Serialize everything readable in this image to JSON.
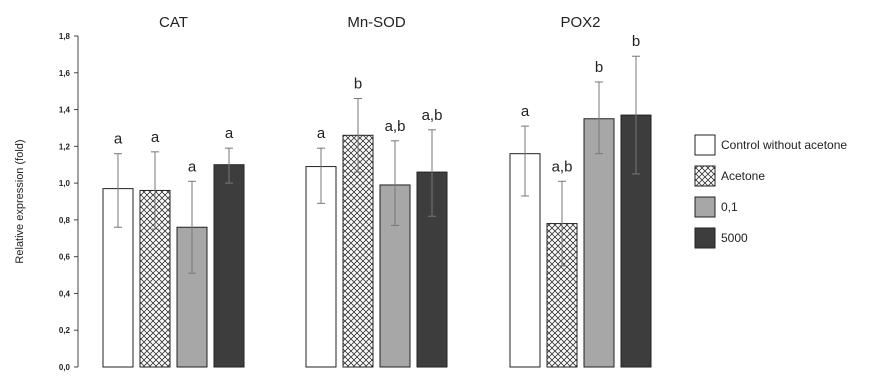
{
  "chart_data": {
    "type": "bar",
    "title": "",
    "xlabel": "",
    "ylabel": "Relative expression (fold)",
    "ylim": [
      0,
      1.8
    ],
    "yticks": [
      "0,0",
      "0,2",
      "0,4",
      "0,6",
      "0,8",
      "1,0",
      "1,2",
      "1,4",
      "1,6",
      "1,8"
    ],
    "grid": false,
    "legend_position": "right",
    "categories": [
      "CAT",
      "Mn-SOD",
      "POX2"
    ],
    "series": [
      {
        "name": "Control without acetone",
        "fill": "#ffffff",
        "pattern": "none",
        "values": [
          0.97,
          1.09,
          1.16
        ],
        "err_low": [
          0.76,
          0.89,
          0.93
        ],
        "err_high": [
          1.16,
          1.19,
          1.31
        ],
        "labels": [
          "a",
          "a",
          "a"
        ]
      },
      {
        "name": "Acetone",
        "fill": "#ffffff",
        "pattern": "crosshatch",
        "values": [
          0.96,
          1.26,
          0.78
        ],
        "err_low": [
          0.75,
          1.06,
          0.55
        ],
        "err_high": [
          1.17,
          1.46,
          1.01
        ],
        "labels": [
          "a",
          "b",
          "a,b"
        ]
      },
      {
        "name": "0,1",
        "fill": "#a7a7a7",
        "pattern": "none",
        "values": [
          0.76,
          0.99,
          1.35
        ],
        "err_low": [
          0.51,
          0.77,
          1.16
        ],
        "err_high": [
          1.01,
          1.23,
          1.55
        ],
        "labels": [
          "a",
          "a,b",
          "b"
        ]
      },
      {
        "name": "5000",
        "fill": "#3d3d3d",
        "pattern": "none",
        "values": [
          1.1,
          1.06,
          1.37
        ],
        "err_low": [
          1.0,
          0.82,
          1.05
        ],
        "err_high": [
          1.19,
          1.29,
          1.69
        ],
        "labels": [
          "a",
          "a,b",
          "b"
        ]
      }
    ]
  }
}
